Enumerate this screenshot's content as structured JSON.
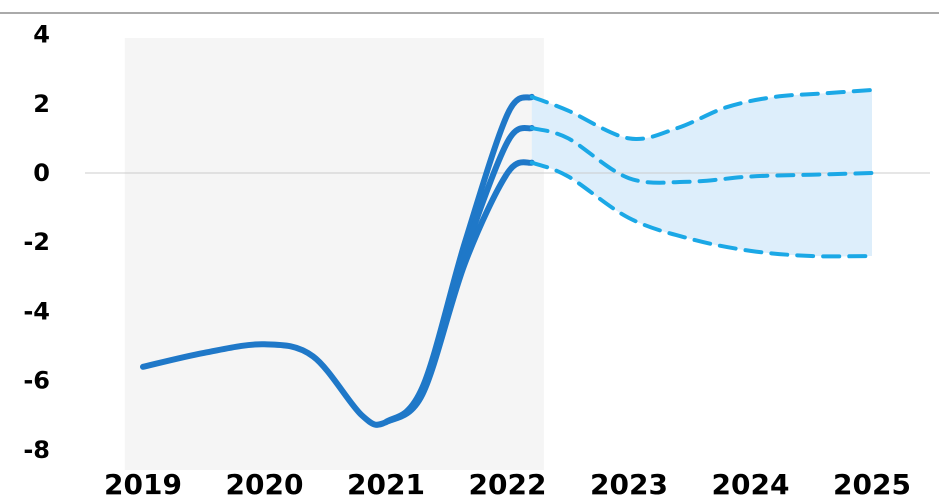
{
  "chart_data": {
    "type": "line",
    "title": "",
    "xlabel": "",
    "ylabel": "",
    "x_ticks": [
      "2019",
      "2020",
      "2021",
      "2022",
      "2023",
      "2024",
      "2025"
    ],
    "y_ticks": [
      "4",
      "2",
      "0",
      "-2",
      "-4",
      "-6",
      "-8"
    ],
    "ylim": [
      -8,
      4
    ],
    "xlim": [
      2019,
      2025
    ],
    "grid": false,
    "zero_line": true,
    "shaded_historical_region": [
      2018.85,
      2022.3
    ],
    "series": [
      {
        "style": "solid",
        "points": [
          [
            2019,
            -5.6
          ],
          [
            2019.5,
            -5.2
          ],
          [
            2020,
            -4.95
          ],
          [
            2020.4,
            -5.3
          ],
          [
            2020.8,
            -7.0
          ],
          [
            2021.0,
            -7.2
          ],
          [
            2021.3,
            -6.2
          ],
          [
            2021.65,
            -2.0
          ],
          [
            2022.0,
            1.7
          ],
          [
            2022.2,
            2.2
          ]
        ]
      },
      {
        "style": "solid",
        "points": [
          [
            2021.0,
            -7.2
          ],
          [
            2021.3,
            -6.3
          ],
          [
            2021.65,
            -2.3
          ],
          [
            2022.0,
            0.9
          ],
          [
            2022.2,
            1.3
          ]
        ]
      },
      {
        "style": "solid",
        "points": [
          [
            2021.0,
            -7.2
          ],
          [
            2021.3,
            -6.4
          ],
          [
            2021.65,
            -2.6
          ],
          [
            2022.0,
            0.0
          ],
          [
            2022.2,
            0.3
          ]
        ]
      },
      {
        "style": "dashed",
        "points": [
          [
            2022.2,
            2.2
          ],
          [
            2022.5,
            1.8
          ],
          [
            2023.0,
            1.0
          ],
          [
            2023.4,
            1.3
          ],
          [
            2023.8,
            1.9
          ],
          [
            2024.2,
            2.2
          ],
          [
            2024.6,
            2.3
          ],
          [
            2025.0,
            2.4
          ]
        ]
      },
      {
        "style": "dashed",
        "points": [
          [
            2022.2,
            1.3
          ],
          [
            2022.5,
            1.0
          ],
          [
            2023.0,
            -0.15
          ],
          [
            2023.5,
            -0.25
          ],
          [
            2024.0,
            -0.1
          ],
          [
            2024.5,
            -0.05
          ],
          [
            2025.0,
            0.0
          ]
        ]
      },
      {
        "style": "dashed",
        "points": [
          [
            2022.2,
            0.3
          ],
          [
            2022.5,
            -0.1
          ],
          [
            2023.0,
            -1.3
          ],
          [
            2023.5,
            -1.9
          ],
          [
            2024.0,
            -2.25
          ],
          [
            2024.5,
            -2.4
          ],
          [
            2025.0,
            -2.4
          ]
        ]
      }
    ],
    "colors": {
      "historical_line": "#1f78c8",
      "forecast_line": "#1ba8e6",
      "forecast_band": "#ddeefb",
      "historical_shade": "#f5f5f5",
      "zero_line": "#cccccc",
      "top_rule": "#555555"
    }
  }
}
